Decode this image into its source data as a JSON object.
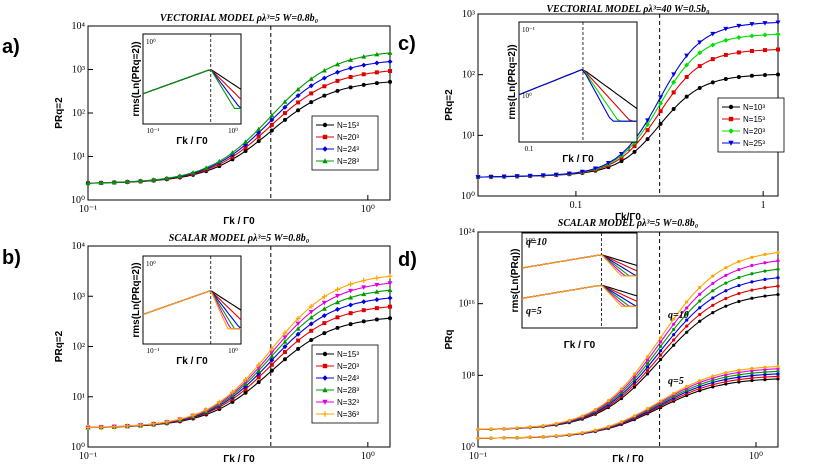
{
  "chart_data": [
    {
      "type": "line",
      "panel": "a)",
      "title": "VECTORIAL MODEL ρλ³=5 W=0.8b₀",
      "xlabel": "Γk / Γ0",
      "ylabel": "PRq=2",
      "xscale": "log",
      "yscale": "log",
      "xlim": [
        0.1,
        1.2
      ],
      "ylim": [
        1,
        10000
      ],
      "x_ticks": [
        "10⁻¹",
        "10⁰"
      ],
      "y_ticks": [
        "10⁰",
        "10¹",
        "10²",
        "10³",
        "10⁴"
      ],
      "legend": "lower-right",
      "vline_x": 0.45,
      "series": [
        {
          "name": "N=15³",
          "color": "#000000",
          "marker": "circle",
          "start": 2.4,
          "end": 500
        },
        {
          "name": "N=20³",
          "color": "#e00000",
          "marker": "square",
          "start": 2.4,
          "end": 900
        },
        {
          "name": "N=24³",
          "color": "#0000e0",
          "marker": "diamond",
          "start": 2.4,
          "end": 1500
        },
        {
          "name": "N=28³",
          "color": "#009a00",
          "marker": "triangle",
          "start": 2.4,
          "end": 2400
        }
      ],
      "inset": {
        "xlabel": "Γk / Γ0",
        "ylabel": "rms(Ln(PRq=2))",
        "x_ticks": [
          "10⁻¹",
          "10⁰"
        ],
        "y_ticks": [
          "10⁰"
        ],
        "vline_x": 0.45
      }
    },
    {
      "type": "line",
      "panel": "b)",
      "title": "SCALAR MODEL ρλ³=5 W=0.8b₀",
      "xlabel": "Γk / Γ0",
      "ylabel": "PRq=2",
      "xscale": "log",
      "yscale": "log",
      "xlim": [
        0.1,
        1.2
      ],
      "ylim": [
        1,
        10000
      ],
      "x_ticks": [
        "10⁻¹",
        "10⁰"
      ],
      "y_ticks": [
        "10⁰",
        "10¹",
        "10²",
        "10³",
        "10⁴"
      ],
      "legend": "lower-right",
      "vline_x": 0.45,
      "series": [
        {
          "name": "N=15³",
          "color": "#000000",
          "marker": "circle",
          "start": 2.4,
          "end": 350
        },
        {
          "name": "N=20³",
          "color": "#e00000",
          "marker": "square",
          "start": 2.4,
          "end": 600
        },
        {
          "name": "N=24³",
          "color": "#0000e0",
          "marker": "diamond",
          "start": 2.4,
          "end": 900
        },
        {
          "name": "N=28³",
          "color": "#009a00",
          "marker": "triangle",
          "start": 2.4,
          "end": 1300
        },
        {
          "name": "N=32³",
          "color": "#e000e0",
          "marker": "triangle-down",
          "start": 2.4,
          "end": 1800
        },
        {
          "name": "N=36³",
          "color": "#ffa500",
          "marker": "plus",
          "start": 2.4,
          "end": 2500
        }
      ],
      "inset": {
        "xlabel": "Γk / Γ0",
        "ylabel": "rms(Ln(PRq=2))",
        "x_ticks": [
          "10⁻¹",
          "10⁰"
        ],
        "y_ticks": [
          "10⁰"
        ],
        "vline_x": 0.45
      }
    },
    {
      "type": "line",
      "panel": "c)",
      "title": "VECTORIAL MODEL ρλ³=40 W=0.5b₀",
      "xlabel": "Γk/Γ0",
      "ylabel": "PRq=2",
      "xscale": "log",
      "yscale": "log",
      "xlim": [
        0.03,
        1.2
      ],
      "ylim": [
        1,
        2000
      ],
      "x_ticks": [
        "0.1",
        "1"
      ],
      "y_ticks": [
        "10⁰",
        "10¹",
        "10²",
        "10³"
      ],
      "legend": "right",
      "vline_x": 0.28,
      "series": [
        {
          "name": "N=10³",
          "color": "#000000",
          "marker": "circle",
          "start": 2.2,
          "end": 130
        },
        {
          "name": "N=15³",
          "color": "#e00000",
          "marker": "square",
          "start": 2.2,
          "end": 370
        },
        {
          "name": "N=20³",
          "color": "#00e000",
          "marker": "diamond",
          "start": 2.2,
          "end": 700
        },
        {
          "name": "N=25³",
          "color": "#0000e0",
          "marker": "triangle-down",
          "start": 2.2,
          "end": 1150
        }
      ],
      "inset": {
        "xlabel": "Γk / Γ0",
        "ylabel": "rms(Ln(PRq=2))",
        "x_ticks": [
          "0.1",
          "1"
        ],
        "y_ticks": [
          "10⁻¹",
          "10⁰"
        ],
        "vline_x": 0.28
      }
    },
    {
      "type": "line",
      "panel": "d)",
      "title": "SCALAR MODEL ρλ³=5 W=0.8b₀",
      "xlabel": "Γk / Γ0",
      "ylabel": "PRq",
      "xscale": "log",
      "yscale": "log",
      "xlim": [
        0.1,
        1.2
      ],
      "ylim": [
        1,
        1e+25
      ],
      "x_ticks": [
        "10⁻¹",
        "10⁰"
      ],
      "y_ticks": [
        "10⁰",
        "10⁸",
        "10¹⁶",
        "10²⁴"
      ],
      "annotations": [
        "q=10",
        "q=5"
      ],
      "vline_x": 0.45,
      "series": [
        {
          "name": "q=10, N=15³",
          "color": "#000000",
          "start": 100.0,
          "end": 1e+18
        },
        {
          "name": "q=10, N=20³",
          "color": "#e00000",
          "start": 100.0,
          "end": 1e+19
        },
        {
          "name": "q=10, N=24³",
          "color": "#0000e0",
          "start": 100.0,
          "end": 1e+20
        },
        {
          "name": "q=10, N=28³",
          "color": "#009a00",
          "start": 100.0,
          "end": 1e+21
        },
        {
          "name": "q=10, N=32³",
          "color": "#e000e0",
          "start": 100.0,
          "end": 1e+22
        },
        {
          "name": "q=10, N=36³",
          "color": "#ffa500",
          "start": 100.0,
          "end": 1e+23
        },
        {
          "name": "q=5, N=15³",
          "color": "#000000",
          "start": 10,
          "end": 100000000.0
        },
        {
          "name": "q=5, N=20³",
          "color": "#e00000",
          "start": 10,
          "end": 200000000.0
        },
        {
          "name": "q=5, N=24³",
          "color": "#0000e0",
          "start": 10,
          "end": 400000000.0
        },
        {
          "name": "q=5, N=28³",
          "color": "#009a00",
          "start": 10,
          "end": 800000000.0
        },
        {
          "name": "q=5, N=32³",
          "color": "#e000e0",
          "start": 10,
          "end": 1600000000.0
        },
        {
          "name": "q=5, N=36³",
          "color": "#ffa500",
          "start": 10,
          "end": 3000000000.0
        }
      ],
      "inset": {
        "xlabel": "Γk / Γ0",
        "ylabel": "rms(Ln(PRq))",
        "y_ticks": [
          "10⁰"
        ],
        "annotations": [
          "q=10",
          "q=5"
        ],
        "vline_x": 0.45
      }
    }
  ]
}
